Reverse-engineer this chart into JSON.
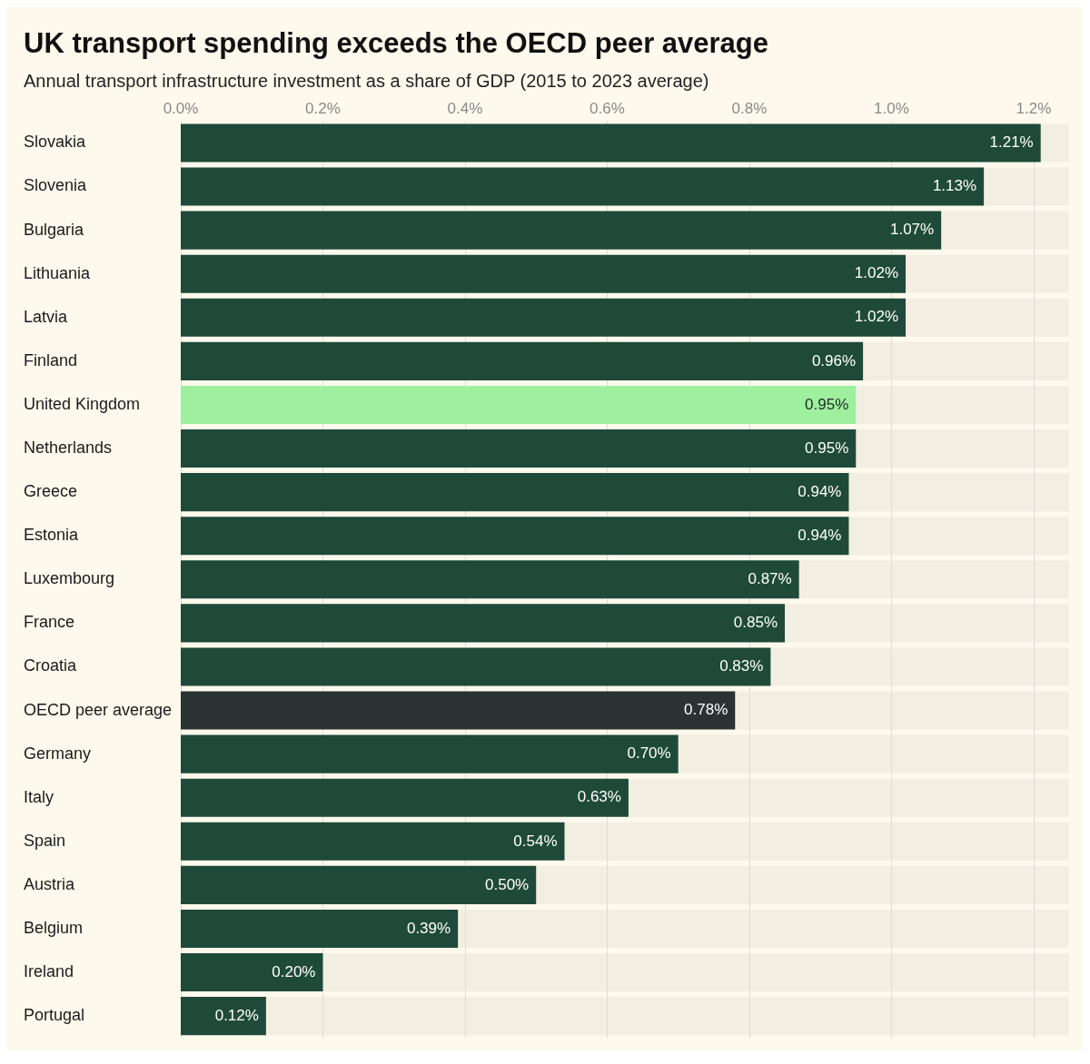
{
  "chart_data": {
    "type": "bar",
    "orientation": "horizontal",
    "title": "UK transport spending exceeds the OECD peer average",
    "subtitle": "Annual transport infrastructure investment as a share of GDP (2015 to 2023 average)",
    "categories": [
      "Slovakia",
      "Slovenia",
      "Bulgaria",
      "Lithuania",
      "Latvia",
      "Finland",
      "United Kingdom",
      "Netherlands",
      "Greece",
      "Estonia",
      "Luxembourg",
      "France",
      "Croatia",
      "OECD peer average",
      "Germany",
      "Italy",
      "Spain",
      "Austria",
      "Belgium",
      "Ireland",
      "Portugal"
    ],
    "values": [
      1.21,
      1.13,
      1.07,
      1.02,
      1.02,
      0.96,
      0.95,
      0.95,
      0.94,
      0.94,
      0.87,
      0.85,
      0.83,
      0.78,
      0.7,
      0.63,
      0.54,
      0.5,
      0.39,
      0.2,
      0.12
    ],
    "value_labels": [
      "1.21%",
      "1.13%",
      "1.07%",
      "1.02%",
      "1.02%",
      "0.96%",
      "0.95%",
      "0.95%",
      "0.94%",
      "0.94%",
      "0.87%",
      "0.85%",
      "0.83%",
      "0.78%",
      "0.70%",
      "0.63%",
      "0.54%",
      "0.50%",
      "0.39%",
      "0.20%",
      "0.12%"
    ],
    "colors": [
      "#1f4a3a",
      "#1f4a3a",
      "#1f4a3a",
      "#1f4a3a",
      "#1f4a3a",
      "#1f4a3a",
      "#9ff09e",
      "#1f4a3a",
      "#1f4a3a",
      "#1f4a3a",
      "#1f4a3a",
      "#1f4a3a",
      "#1f4a3a",
      "#2a3232",
      "#1f4a3a",
      "#1f4a3a",
      "#1f4a3a",
      "#1f4a3a",
      "#1f4a3a",
      "#1f4a3a",
      "#1f4a3a"
    ],
    "xlim": [
      0,
      1.25
    ],
    "xticks": [
      {
        "value": 0,
        "label": "0.0%"
      },
      {
        "value": 0.2,
        "label": "0.2%"
      },
      {
        "value": 0.4,
        "label": "0.4%"
      },
      {
        "value": 0.6,
        "label": "0.6%"
      },
      {
        "value": 0.8,
        "label": "0.8%"
      },
      {
        "value": 1.0,
        "label": "1.0%"
      },
      {
        "value": 1.2,
        "label": "1.2%"
      }
    ],
    "grid": "x",
    "legend": false
  }
}
